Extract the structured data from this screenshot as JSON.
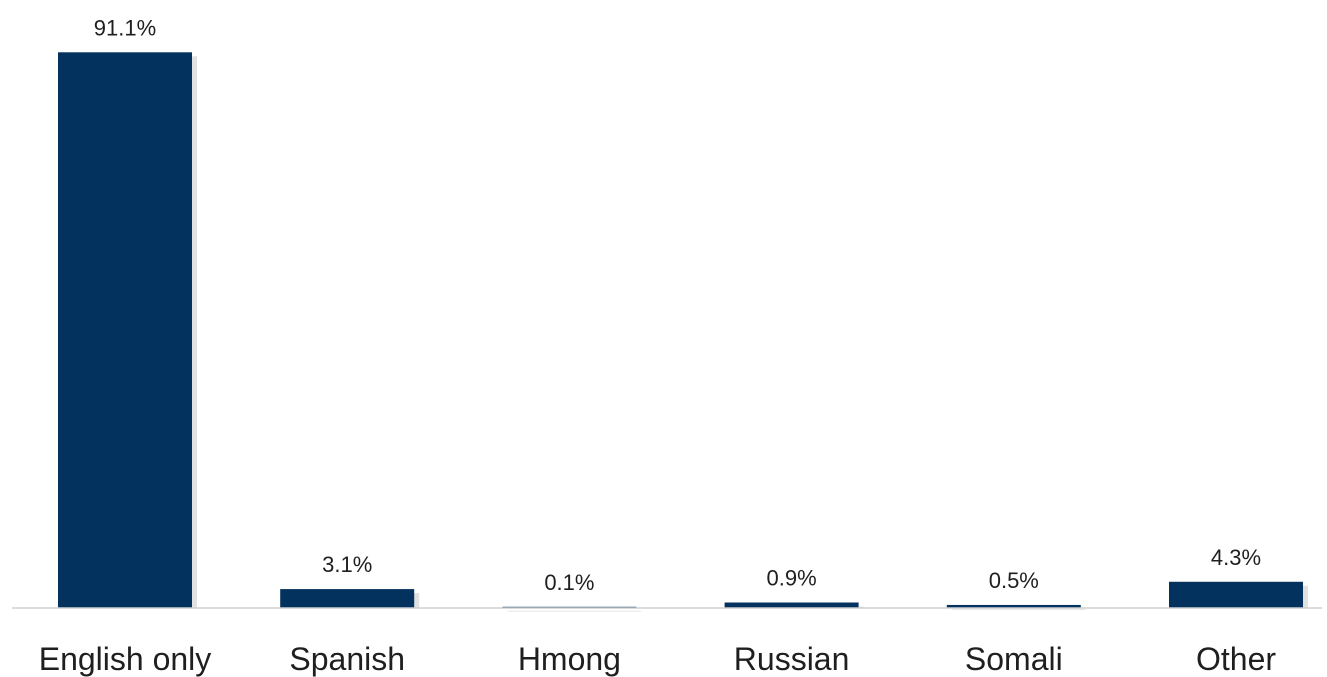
{
  "chart_data": {
    "type": "bar",
    "title": "",
    "xlabel": "",
    "ylabel": "",
    "categories": [
      "English only",
      "Spanish",
      "Hmong",
      "Russian",
      "Somali",
      "Other"
    ],
    "values": [
      91.1,
      3.1,
      0.1,
      0.9,
      0.5,
      4.3
    ],
    "value_labels": [
      "91.1%",
      "3.1%",
      "0.1%",
      "0.9%",
      "0.5%",
      "4.3%"
    ],
    "unit": "%",
    "ylim": [
      0,
      100
    ],
    "grid": false,
    "legend": "none",
    "bar_color": "#03325f"
  }
}
